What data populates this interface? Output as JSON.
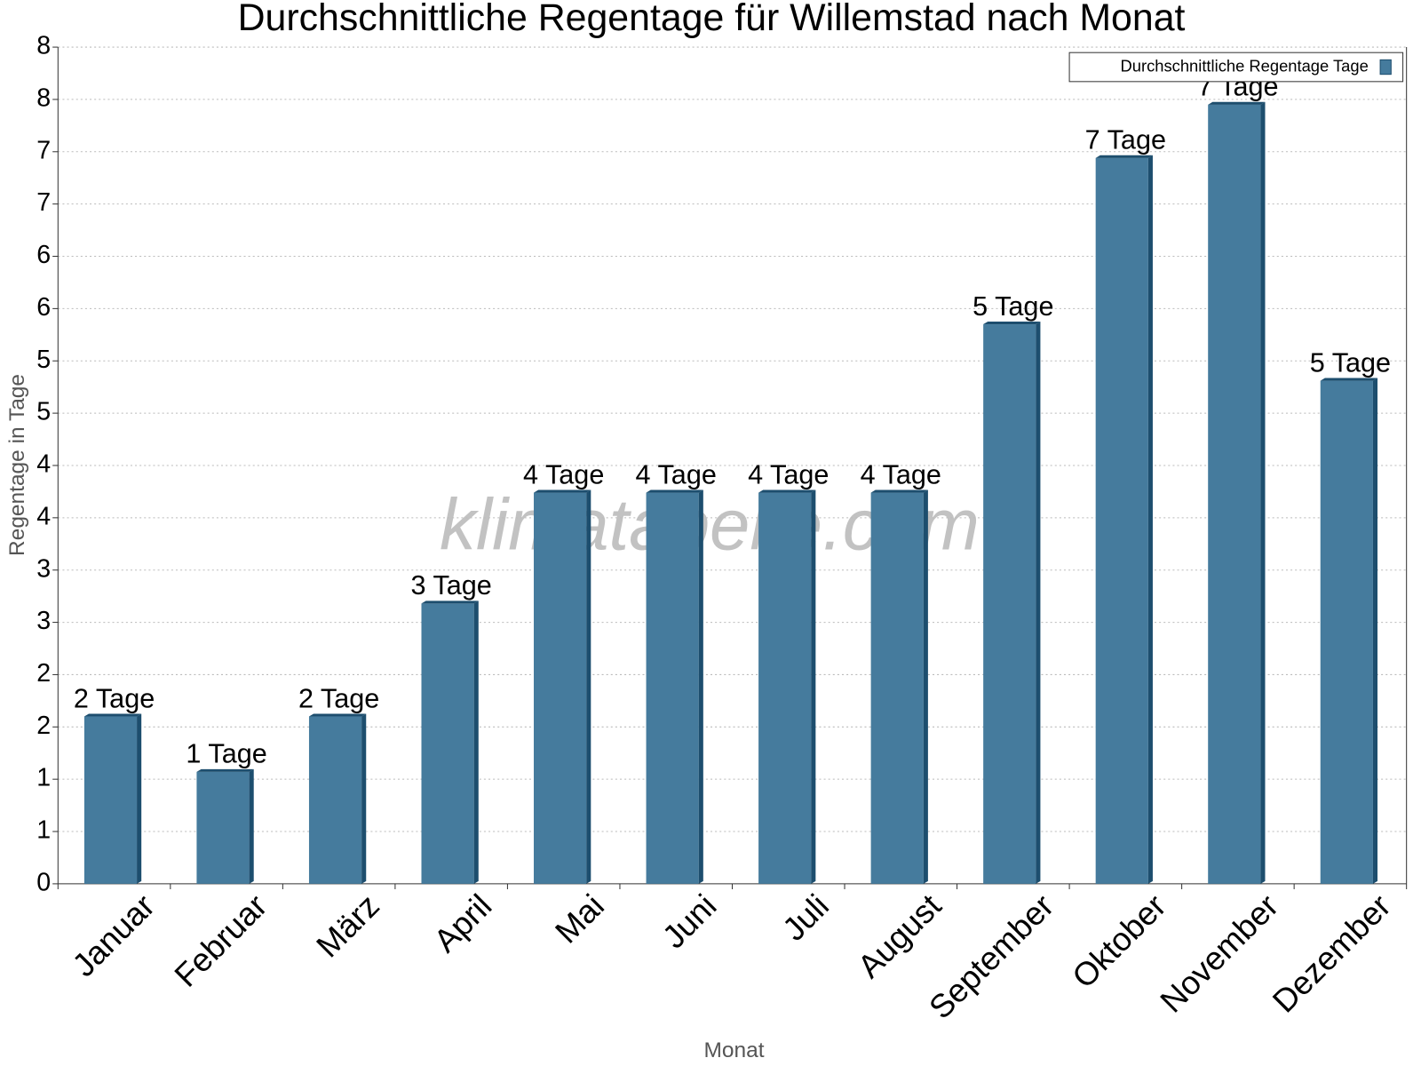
{
  "chart_data": {
    "type": "bar",
    "title": "Durchschnittliche Regentage für Willemstad nach Monat",
    "x_label": "Monat",
    "y_label": "Regentage in Tage",
    "watermark": "klimatabelle.com",
    "categories": [
      "Januar",
      "Februar",
      "März",
      "April",
      "Mai",
      "Juni",
      "Juli",
      "August",
      "September",
      "Oktober",
      "November",
      "Dezember"
    ],
    "series": [
      {
        "name": "Durchschnittliche Regentage Tage",
        "color": "#457b9d",
        "values": [
          1.6,
          1.07,
          1.6,
          2.68,
          3.74,
          3.74,
          3.74,
          3.74,
          5.35,
          6.94,
          7.45,
          4.81
        ],
        "value_labels": [
          "2 Tage",
          "1 Tage",
          "2 Tage",
          "3 Tage",
          "4 Tage",
          "4 Tage",
          "4 Tage",
          "4 Tage",
          "5 Tage",
          "7 Tage",
          "7 Tage",
          "5 Tage"
        ]
      }
    ],
    "ylim": [
      0,
      8
    ],
    "yticks": [
      0,
      {
        "value": 0.5,
        "label": "1"
      },
      1,
      {
        "value": 1.5,
        "label": "2"
      },
      2,
      {
        "value": 2.5,
        "label": "3"
      },
      3,
      {
        "value": 3.5,
        "label": "4"
      },
      4,
      {
        "value": 4.5,
        "label": "5"
      },
      5,
      {
        "value": 5.5,
        "label": "6"
      },
      6,
      {
        "value": 6.5,
        "label": "7"
      },
      7,
      {
        "value": 7.5,
        "label": "8"
      },
      8
    ],
    "grid": true,
    "legend": "top-right"
  }
}
